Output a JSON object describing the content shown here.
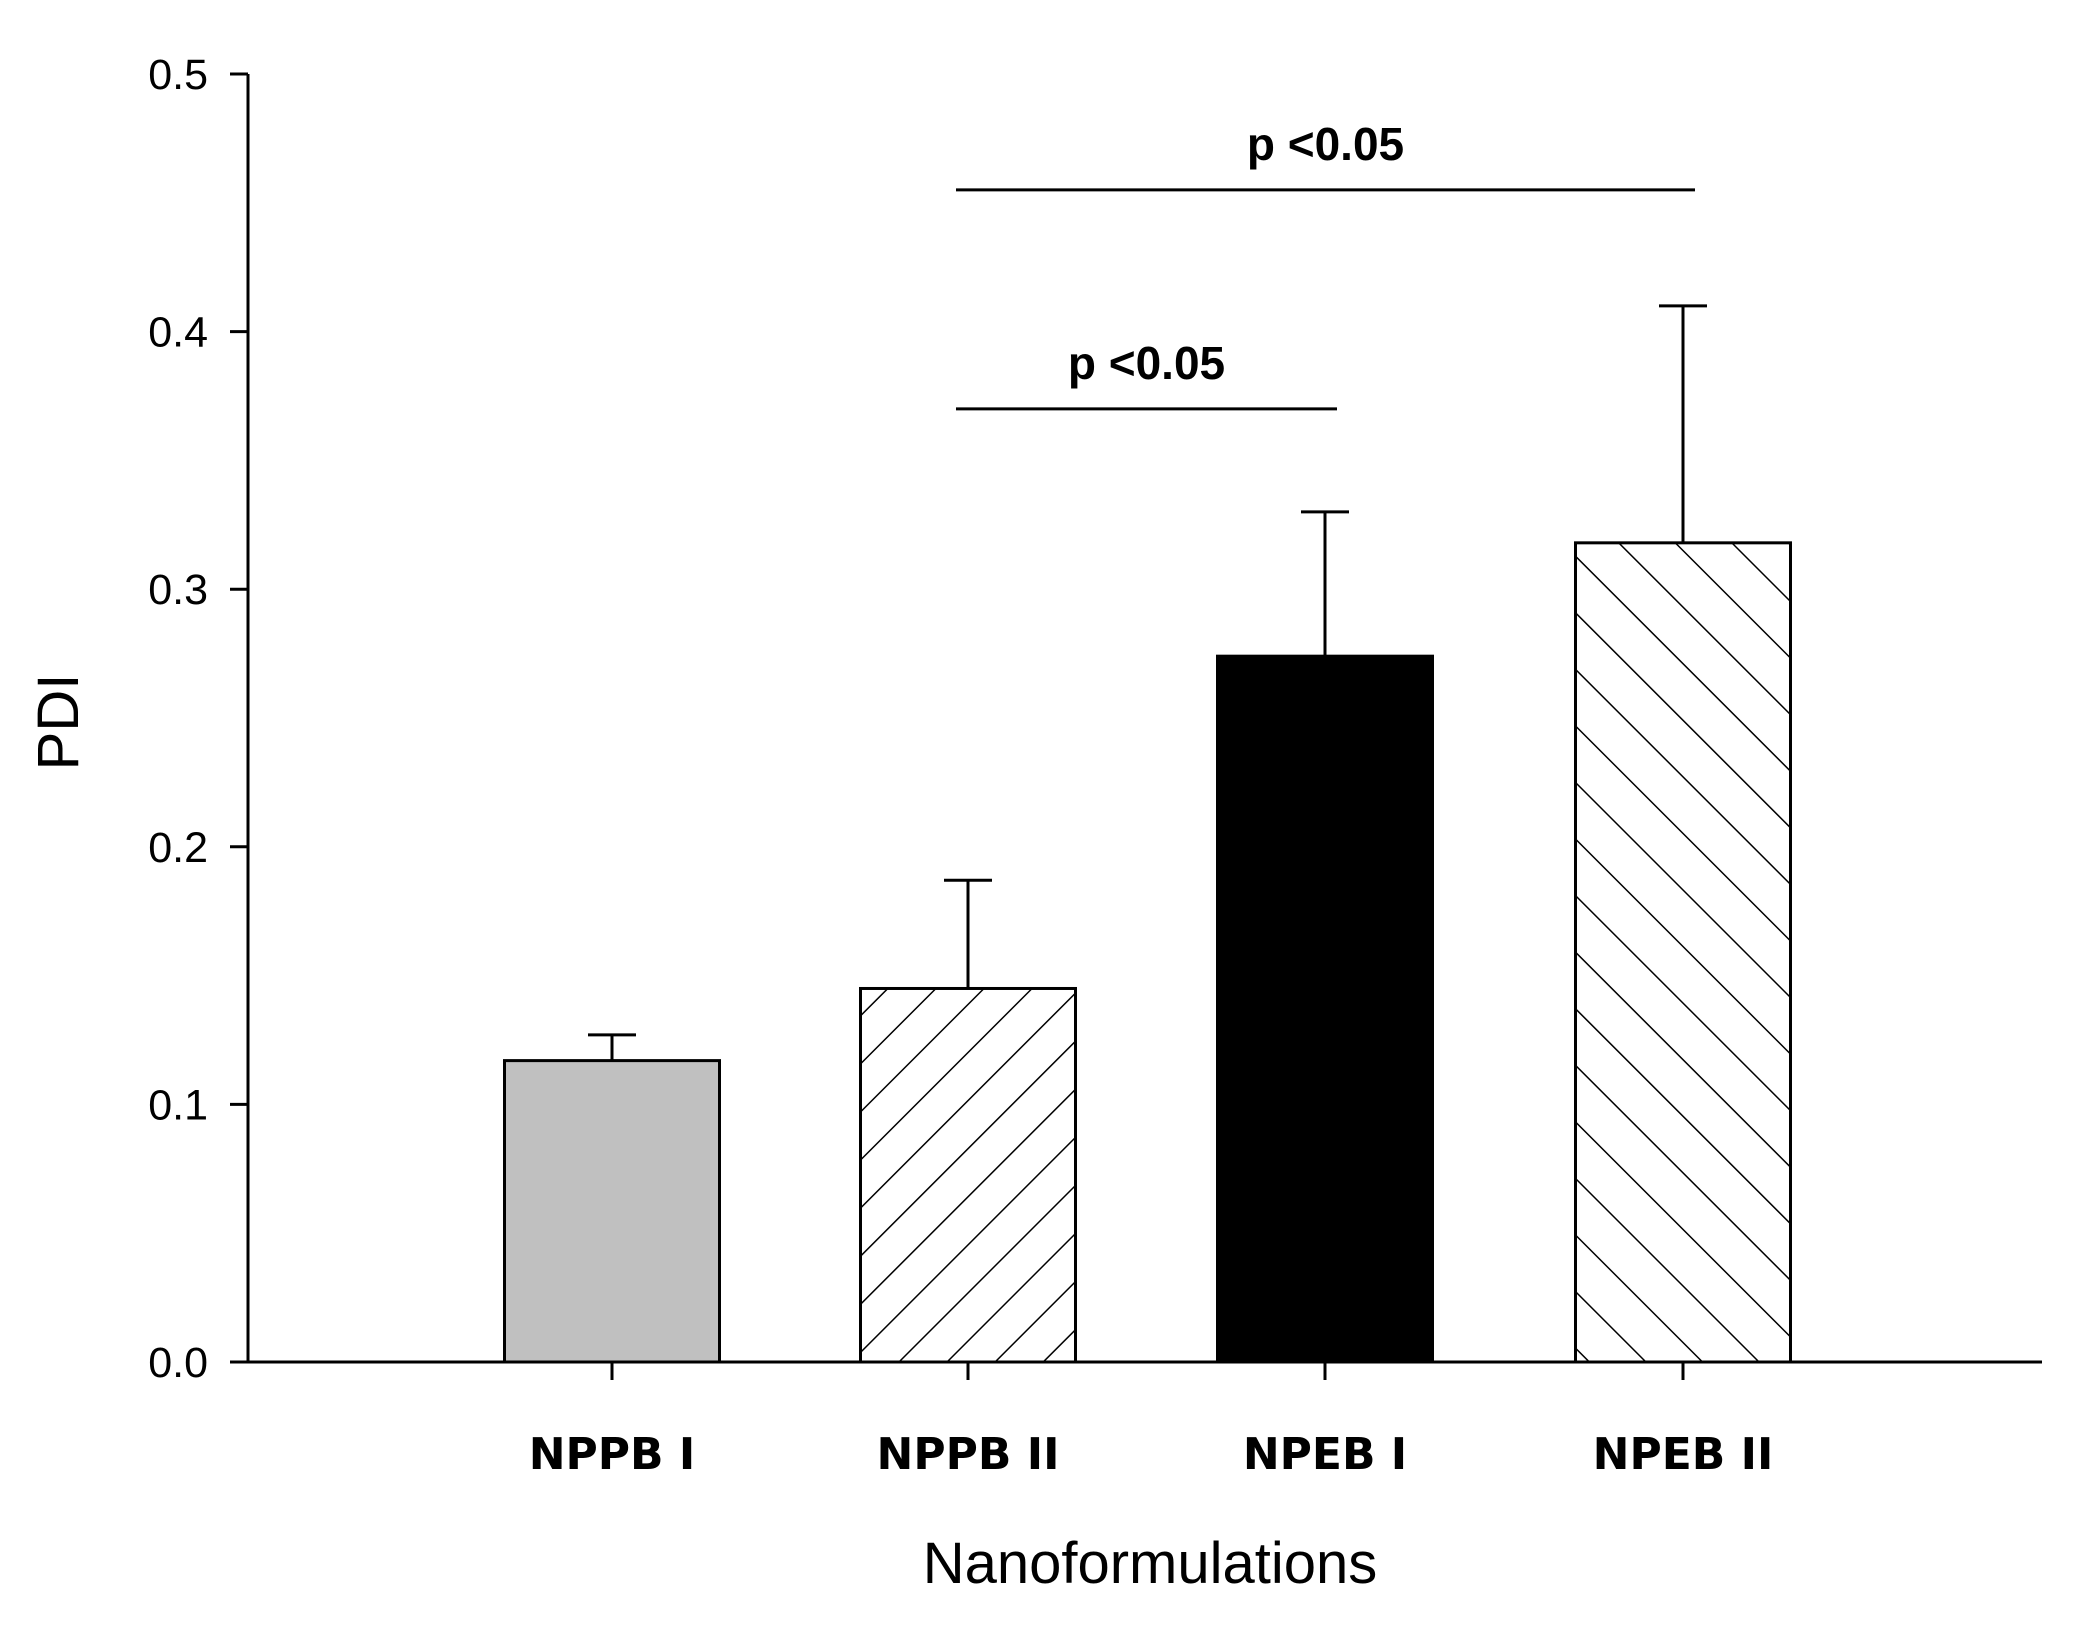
{
  "chart_data": {
    "type": "bar",
    "title": "",
    "xlabel": "Nanoformulations",
    "ylabel": "PDI",
    "ylim": [
      0.0,
      0.5
    ],
    "yticks": [
      "0.0",
      "0.1",
      "0.2",
      "0.3",
      "0.4",
      "0.5"
    ],
    "categories": [
      "NPPB I",
      "NPPB II",
      "NPEB I",
      "NPEB II"
    ],
    "values": [
      0.117,
      0.145,
      0.274,
      0.318
    ],
    "errors": [
      0.01,
      0.042,
      0.056,
      0.092
    ],
    "fills": [
      "gray",
      "hatch-forward",
      "black",
      "hatch-back"
    ],
    "colors": {
      "gray": "#c0c0c0",
      "black": "#000000",
      "white": "#ffffff",
      "stroke": "#000000"
    },
    "grid": false,
    "legend": "none",
    "annotations": [
      {
        "text": "p <0.05",
        "from": "NPPB II",
        "to": "NPEB I",
        "level": 0.37
      },
      {
        "text": "p <0.05",
        "from": "NPPB II",
        "to": "NPEB II",
        "level": 0.455
      }
    ]
  }
}
